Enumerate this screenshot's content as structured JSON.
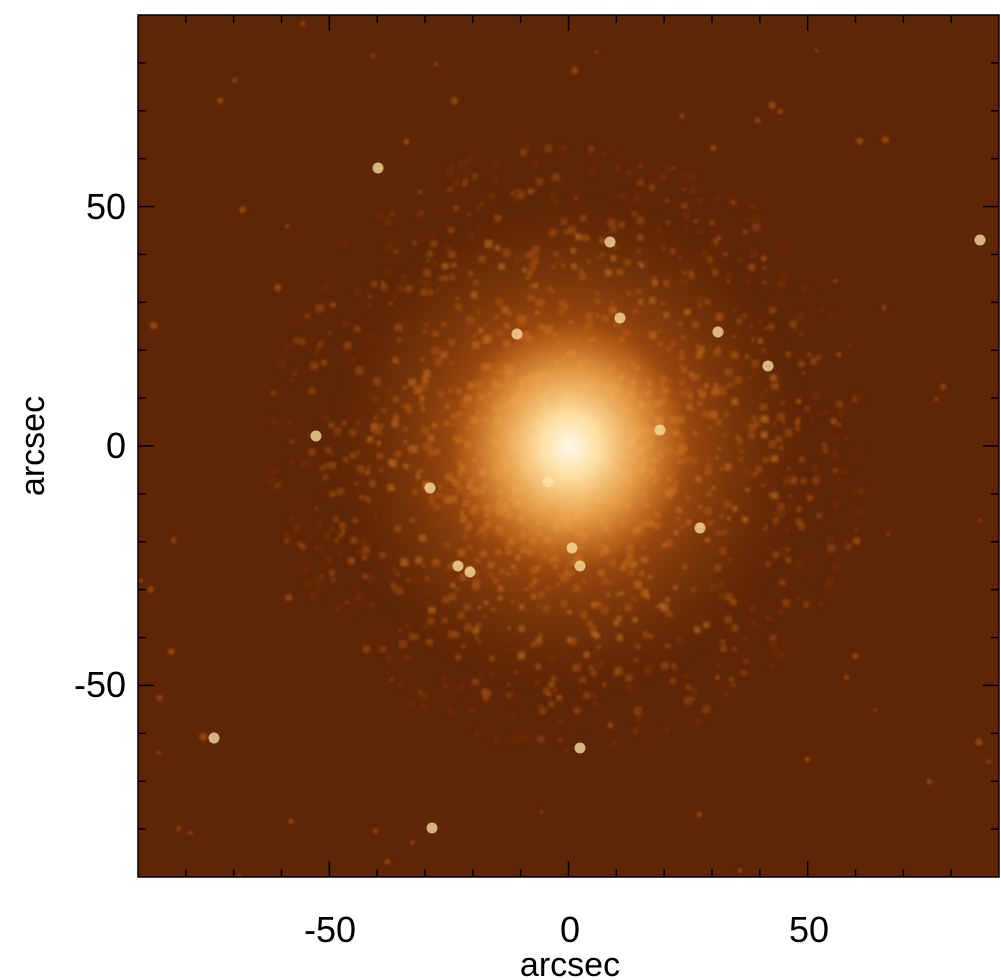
{
  "image": {
    "subject": "diffuse glowing cluster",
    "colormap": [
      "#5e2606",
      "#7a3608",
      "#b85a14",
      "#e08a2c",
      "#f6b256",
      "#ffe4a8",
      "#fff8ea"
    ]
  },
  "axes": {
    "xlabel": "arcsec",
    "ylabel": "arcsec",
    "xlim": [
      -90,
      90
    ],
    "ylim": [
      -90,
      90
    ],
    "major_ticks": [
      -50,
      0,
      50
    ],
    "major_tick_labels": [
      "-50",
      "0",
      "50"
    ],
    "minor_tick_step": 10
  }
}
